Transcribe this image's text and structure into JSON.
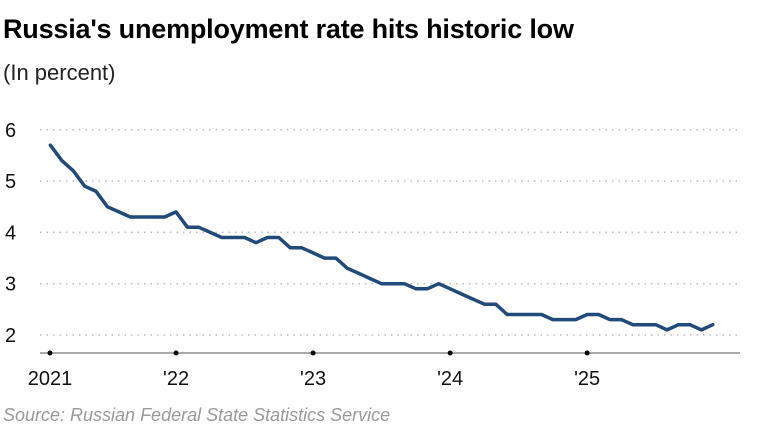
{
  "chart_data": {
    "type": "line",
    "title": "Russia's unemployment rate hits historic low",
    "subtitle": "(In percent)",
    "source": "Source: Russian Federal State Statistics Service",
    "xlabel": "",
    "ylabel": "",
    "ylim": [
      2,
      6
    ],
    "yticks": [
      2,
      3,
      4,
      5,
      6
    ],
    "xticks": [
      {
        "label": "2021",
        "date": "2021-01"
      },
      {
        "label": "'22",
        "date": "2022-01"
      },
      {
        "label": "'23",
        "date": "2023-01"
      },
      {
        "label": "'24",
        "date": "2024-01"
      },
      {
        "label": "'25",
        "date": "2025-01"
      }
    ],
    "grid": "horizontal dotted",
    "color": "#1f4a7a",
    "series": [
      {
        "start": "2021-02",
        "frequency": "monthly",
        "values": [
          5.7,
          5.4,
          5.2,
          4.9,
          4.8,
          4.5,
          4.4,
          4.3,
          4.3,
          4.3,
          4.3,
          4.4,
          4.1,
          4.1,
          4.0,
          3.9,
          3.9,
          3.9,
          3.8,
          3.9,
          3.9,
          3.7,
          3.7,
          3.6,
          3.5,
          3.5,
          3.3,
          3.2,
          3.1,
          3.0,
          3.0,
          3.0,
          2.9,
          2.9,
          3.0,
          2.9,
          2.8,
          2.7,
          2.6,
          2.6,
          2.4,
          2.4,
          2.4,
          2.4,
          2.3,
          2.3,
          2.3,
          2.4,
          2.4,
          2.3,
          2.3,
          2.2,
          2.2,
          2.2,
          2.1,
          2.2,
          2.2,
          2.1,
          2.2
        ]
      }
    ]
  }
}
